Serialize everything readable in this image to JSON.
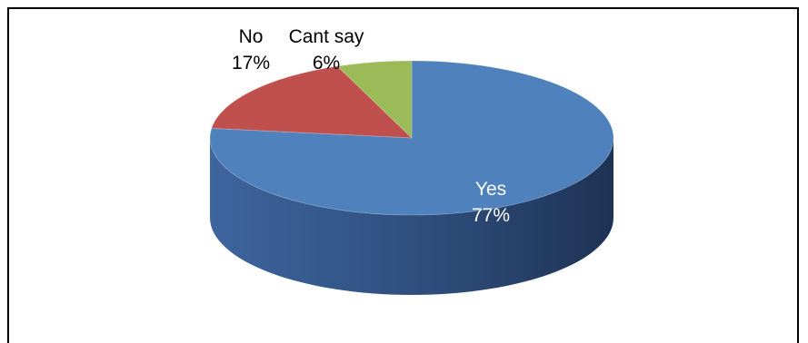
{
  "chart_data": {
    "type": "pie",
    "style": "3d",
    "slices": [
      {
        "name": "Yes",
        "value": 77,
        "pct_label": "77%",
        "color": "#4F81BD",
        "side_dark": "#1F3556",
        "side_light": "#4A70A6"
      },
      {
        "name": "No",
        "value": 17,
        "pct_label": "17%",
        "color": "#C0504D",
        "side_dark": "#6F2826",
        "side_light": "#A8403D"
      },
      {
        "name": "Cant say",
        "value": 6,
        "pct_label": "6%",
        "color": "#9BBB59",
        "side_dark": "#5A6E2E",
        "side_light": "#87A54B"
      }
    ],
    "label_color_inside": "#ffffff",
    "label_color_outside": "#000000",
    "legend": "none"
  }
}
